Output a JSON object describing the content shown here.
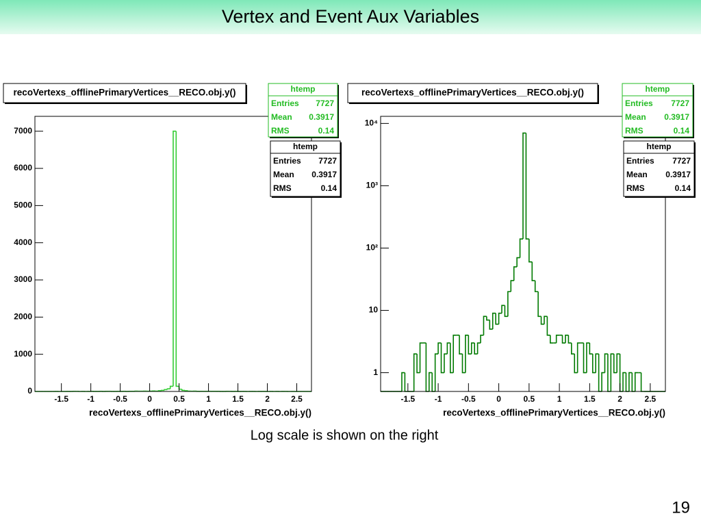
{
  "slide": {
    "title": "Vertex and Event Aux Variables",
    "caption": "Log scale is shown on the right",
    "page_number": "19"
  },
  "chart_data": [
    {
      "type": "histogram",
      "title": "recoVertexs_offlinePrimaryVertices__RECO.obj.y()",
      "x_label": "recoVertexs_offlinePrimaryVertices__RECO.obj.y()",
      "color": "#33cc33",
      "log_y": false,
      "bins": [
        -1.95,
        -1.9,
        -1.85,
        -1.8,
        -1.75,
        -1.7,
        -1.65,
        -1.6,
        -1.55,
        -1.5,
        -1.45,
        -1.4,
        -1.35,
        -1.3,
        -1.25,
        -1.2,
        -1.15,
        -1.1,
        -1.05,
        -1,
        -0.95,
        -0.9,
        -0.85,
        -0.8,
        -0.75,
        -0.7,
        -0.65,
        -0.6,
        -0.55,
        -0.5,
        -0.45,
        -0.4,
        -0.35,
        -0.3,
        -0.25,
        -0.2,
        -0.15,
        -0.1,
        -0.05,
        0,
        0.05,
        0.1,
        0.15,
        0.2,
        0.25,
        0.3,
        0.35,
        0.4,
        0.45,
        0.5,
        0.55,
        0.6,
        0.65,
        0.7,
        0.75,
        0.8,
        0.85,
        0.9,
        0.95,
        1,
        1.05,
        1.1,
        1.15,
        1.2,
        1.25,
        1.3,
        1.35,
        1.4,
        1.45,
        1.5,
        1.55,
        1.6,
        1.65,
        1.7,
        1.75,
        1.8,
        1.85,
        1.9,
        1.95,
        2,
        2.05,
        2.1,
        2.15,
        2.2,
        2.25,
        2.3,
        2.35,
        2.4,
        2.45,
        2.5,
        2.55,
        2.6,
        2.65,
        2.7,
        2.75
      ],
      "values": [
        0,
        0,
        0,
        0,
        0,
        0,
        0,
        1,
        0,
        0,
        0,
        2,
        1,
        3,
        3,
        0,
        1,
        0,
        2,
        3,
        1,
        2,
        3,
        1,
        4,
        4,
        2,
        1,
        4,
        2,
        3,
        2,
        3,
        4,
        8,
        7,
        5,
        9,
        6,
        9,
        12,
        8,
        20,
        30,
        50,
        70,
        140,
        7000,
        140,
        60,
        30,
        20,
        8,
        6,
        8,
        4,
        3,
        3,
        4,
        4,
        3,
        4,
        3,
        2,
        1,
        3,
        3,
        1,
        3,
        2,
        1,
        2,
        0,
        1,
        2,
        0,
        2,
        1,
        2,
        0,
        1,
        0,
        1,
        0,
        1,
        1,
        0,
        0,
        0,
        0,
        0,
        0,
        0,
        0
      ],
      "xlim": [
        -1.95,
        2.75
      ],
      "xticks": [
        -1.5,
        -1,
        -0.5,
        0,
        0.5,
        1,
        1.5,
        2,
        2.5
      ],
      "ylim": [
        0,
        7400
      ],
      "yticks": [
        0,
        1000,
        2000,
        3000,
        4000,
        5000,
        6000,
        7000
      ],
      "stats": [
        {
          "title": "htemp",
          "color": "#22bb22",
          "rows": [
            {
              "label": "Entries",
              "value": 7727
            },
            {
              "label": "Mean",
              "value": 0.3917
            },
            {
              "label": "RMS",
              "value": 0.14
            }
          ]
        },
        {
          "title": "htemp",
          "color": "#000000",
          "rows": [
            {
              "label": "Entries",
              "value": 7727
            },
            {
              "label": "Mean",
              "value": 0.3917
            },
            {
              "label": "RMS",
              "value": 0.14
            }
          ]
        }
      ]
    },
    {
      "type": "histogram",
      "title": "recoVertexs_offlinePrimaryVertices__RECO.obj.y()",
      "x_label": "recoVertexs_offlinePrimaryVertices__RECO.obj.y()",
      "color": "#007a00",
      "log_y": true,
      "bins": [
        -1.95,
        -1.9,
        -1.85,
        -1.8,
        -1.75,
        -1.7,
        -1.65,
        -1.6,
        -1.55,
        -1.5,
        -1.45,
        -1.4,
        -1.35,
        -1.3,
        -1.25,
        -1.2,
        -1.15,
        -1.1,
        -1.05,
        -1,
        -0.95,
        -0.9,
        -0.85,
        -0.8,
        -0.75,
        -0.7,
        -0.65,
        -0.6,
        -0.55,
        -0.5,
        -0.45,
        -0.4,
        -0.35,
        -0.3,
        -0.25,
        -0.2,
        -0.15,
        -0.1,
        -0.05,
        0,
        0.05,
        0.1,
        0.15,
        0.2,
        0.25,
        0.3,
        0.35,
        0.4,
        0.45,
        0.5,
        0.55,
        0.6,
        0.65,
        0.7,
        0.75,
        0.8,
        0.85,
        0.9,
        0.95,
        1,
        1.05,
        1.1,
        1.15,
        1.2,
        1.25,
        1.3,
        1.35,
        1.4,
        1.45,
        1.5,
        1.55,
        1.6,
        1.65,
        1.7,
        1.75,
        1.8,
        1.85,
        1.9,
        1.95,
        2,
        2.05,
        2.1,
        2.15,
        2.2,
        2.25,
        2.3,
        2.35,
        2.4,
        2.45,
        2.5,
        2.55,
        2.6,
        2.65,
        2.7,
        2.75
      ],
      "values": [
        0,
        0,
        0,
        0,
        0,
        0,
        0,
        1,
        0,
        0,
        0,
        2,
        1,
        3,
        3,
        0,
        1,
        0,
        2,
        3,
        1,
        2,
        3,
        1,
        4,
        4,
        2,
        1,
        4,
        2,
        3,
        2,
        3,
        4,
        8,
        7,
        5,
        9,
        6,
        9,
        12,
        8,
        20,
        30,
        50,
        70,
        140,
        7000,
        140,
        60,
        30,
        20,
        8,
        6,
        8,
        4,
        3,
        3,
        4,
        4,
        3,
        4,
        3,
        2,
        1,
        3,
        3,
        1,
        3,
        2,
        1,
        2,
        0,
        1,
        2,
        0,
        2,
        1,
        2,
        0,
        1,
        0,
        1,
        0,
        1,
        1,
        0,
        0,
        0,
        0,
        0,
        0,
        0,
        0
      ],
      "xlim": [
        -1.95,
        2.75
      ],
      "xticks": [
        -1.5,
        -1,
        -0.5,
        0,
        0.5,
        1,
        1.5,
        2,
        2.5
      ],
      "ylim": [
        0.5,
        13000
      ],
      "yticks": [
        1,
        10,
        {
          "value": 100,
          "label": "10²"
        },
        {
          "value": 1000,
          "label": "10³"
        },
        {
          "value": 10000,
          "label": "10⁴"
        }
      ],
      "stats": [
        {
          "title": "htemp",
          "color": "#22bb22",
          "rows": [
            {
              "label": "Entries",
              "value": 7727
            },
            {
              "label": "Mean",
              "value": 0.3917
            },
            {
              "label": "RMS",
              "value": 0.14
            }
          ]
        },
        {
          "title": "htemp",
          "color": "#000000",
          "rows": [
            {
              "label": "Entries",
              "value": 7727
            },
            {
              "label": "Mean",
              "value": 0.3917
            },
            {
              "label": "RMS",
              "value": 0.14
            }
          ]
        }
      ]
    }
  ]
}
